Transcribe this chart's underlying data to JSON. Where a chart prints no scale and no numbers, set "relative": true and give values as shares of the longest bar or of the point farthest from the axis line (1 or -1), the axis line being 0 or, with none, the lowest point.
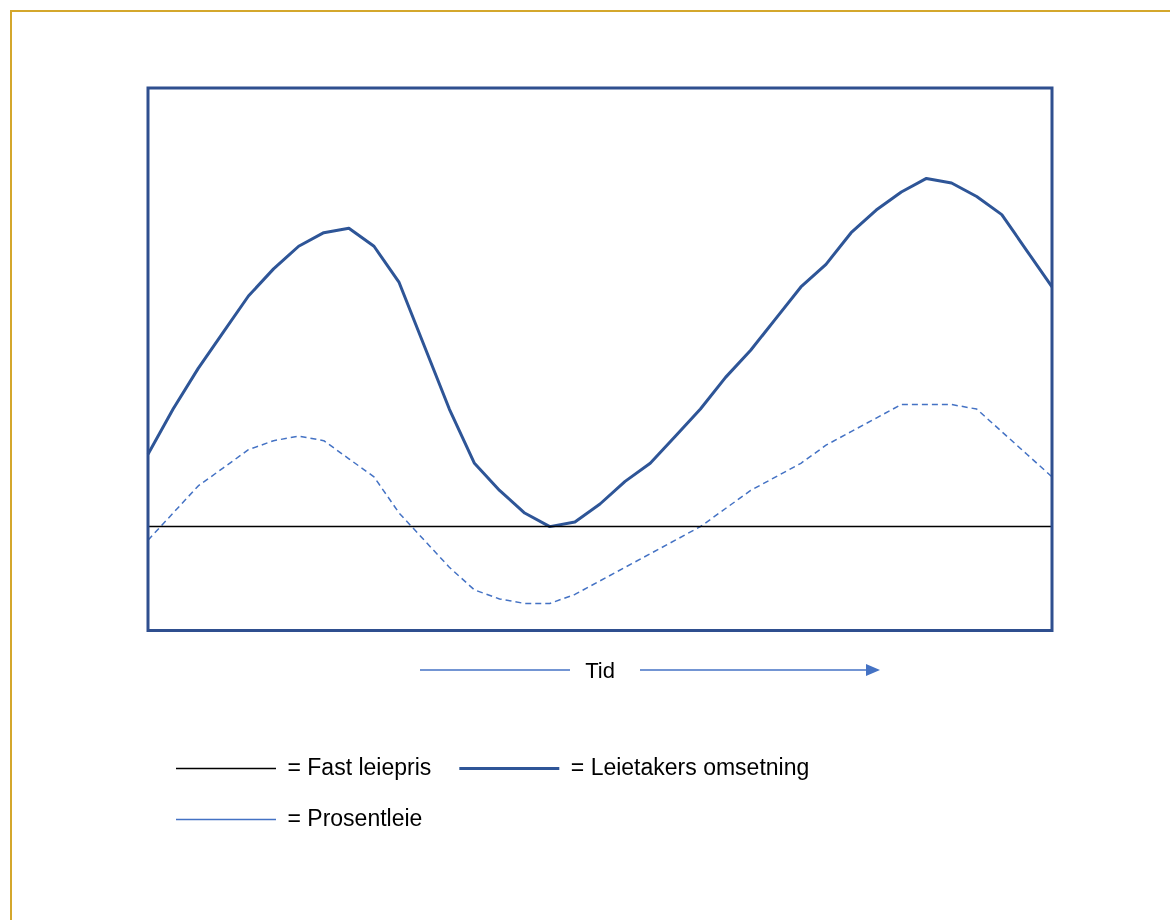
{
  "chart_data": {
    "type": "line",
    "relative": true,
    "xlabel": "Tid",
    "legend": "bottom",
    "categories": [
      null,
      null,
      null,
      null,
      null,
      null,
      null,
      null,
      null,
      null,
      null,
      null,
      null,
      null,
      null,
      null,
      null,
      null,
      null,
      null,
      null,
      null,
      null,
      null,
      null,
      null,
      null,
      null,
      null,
      null,
      null,
      null,
      null,
      null,
      null,
      null,
      null
    ],
    "series": [
      {
        "name": "= Fast leiepris",
        "color": "#000000",
        "line_style": "solid",
        "values": [
          0.23,
          0.23,
          0.23,
          0.23,
          0.23,
          0.23,
          0.23,
          0.23,
          0.23,
          0.23,
          0.23,
          0.23,
          0.23,
          0.23,
          0.23,
          0.23,
          0.23,
          0.23,
          0.23,
          0.23,
          0.23,
          0.23,
          0.23,
          0.23,
          0.23,
          0.23,
          0.23,
          0.23,
          0.23,
          0.23,
          0.23,
          0.23,
          0.23,
          0.23,
          0.23,
          0.23,
          0.23
        ]
      },
      {
        "name": "= Leietakers omsetning",
        "color": "#2e5597",
        "line_style": "solid",
        "values": [
          0.39,
          0.49,
          0.58,
          0.66,
          0.74,
          0.8,
          0.85,
          0.88,
          0.89,
          0.85,
          0.77,
          0.63,
          0.49,
          0.37,
          0.31,
          0.26,
          0.23,
          0.24,
          0.28,
          0.33,
          0.37,
          0.43,
          0.49,
          0.56,
          0.62,
          0.69,
          0.76,
          0.81,
          0.88,
          0.93,
          0.97,
          1,
          0.99,
          0.96,
          0.92,
          0.84,
          0.76
        ]
      },
      {
        "name": "= Prosentleie",
        "color": "#4472c4",
        "line_style": "dashed",
        "values": [
          0.2,
          0.26,
          0.32,
          0.36,
          0.4,
          0.42,
          0.43,
          0.42,
          0.38,
          0.34,
          0.26,
          0.2,
          0.14,
          0.09,
          0.07,
          0.06,
          0.06,
          0.08,
          0.11,
          0.14,
          0.17,
          0.2,
          0.23,
          0.27,
          0.31,
          0.34,
          0.37,
          0.41,
          0.44,
          0.47,
          0.5,
          0.5,
          0.5,
          0.49,
          0.44,
          0.39,
          0.34
        ]
      }
    ]
  }
}
